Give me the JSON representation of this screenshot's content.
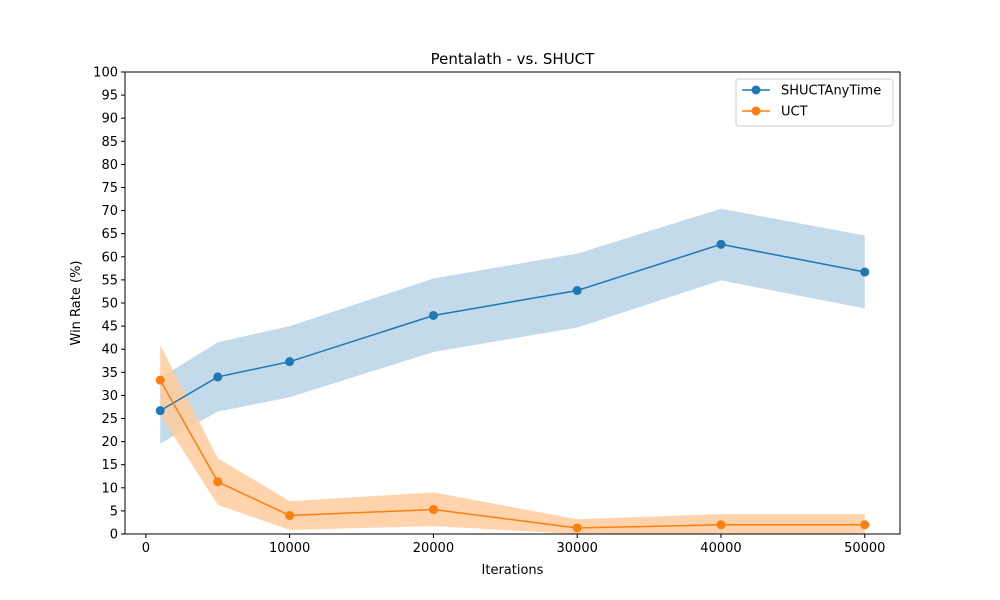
{
  "chart_data": {
    "type": "line",
    "title": "Pentalath - vs. SHUCT",
    "xlabel": "Iterations",
    "ylabel": "Win Rate (%)",
    "x": [
      1000,
      5000,
      10000,
      20000,
      30000,
      40000,
      50000
    ],
    "xticks": [
      0,
      10000,
      20000,
      30000,
      40000,
      50000
    ],
    "yticks": [
      0,
      5,
      10,
      15,
      20,
      25,
      30,
      35,
      40,
      45,
      50,
      55,
      60,
      65,
      70,
      75,
      80,
      85,
      90,
      95,
      100
    ],
    "xlim": [
      -1450,
      52450
    ],
    "ylim": [
      0,
      100
    ],
    "grid": false,
    "legend_position": "top-right",
    "series": [
      {
        "name": "SHUCTAnyTime",
        "color": "#1f77b4",
        "band_color": "#b9d4e8",
        "values": [
          26.7,
          34.0,
          37.3,
          47.3,
          52.7,
          62.7,
          56.7
        ],
        "lower": [
          19.6,
          26.5,
          29.6,
          39.4,
          44.7,
          54.9,
          48.8
        ],
        "upper": [
          33.8,
          41.5,
          45.0,
          55.3,
          60.7,
          70.4,
          64.6
        ]
      },
      {
        "name": "UCT",
        "color": "#ff7f0e",
        "band_color": "#ffcc9e",
        "values": [
          33.3,
          11.3,
          4.0,
          5.3,
          1.3,
          2.0,
          2.0
        ],
        "lower": [
          25.8,
          6.3,
          0.9,
          1.7,
          0.0,
          0.0,
          0.0
        ],
        "upper": [
          40.9,
          16.4,
          7.1,
          9.0,
          3.2,
          4.3,
          4.3
        ]
      }
    ]
  }
}
